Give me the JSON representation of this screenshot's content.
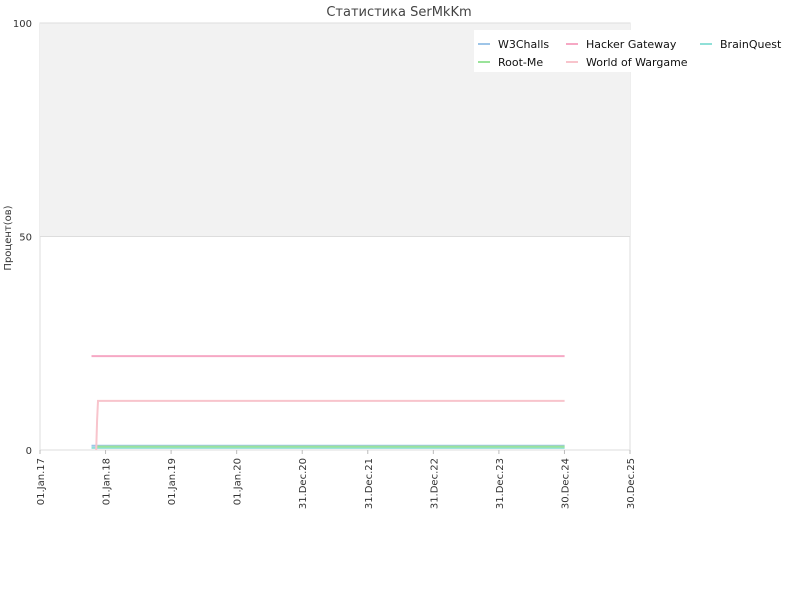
{
  "chart_data": {
    "type": "line",
    "title": "Статистика SerMkKm",
    "ylabel": "Процент(ов)",
    "xlabel": "",
    "ylim": [
      0,
      100
    ],
    "y_ticks": [
      "0",
      "50",
      "100"
    ],
    "x_ticks": [
      "01.Jan.17",
      "01.Jan.18",
      "01.Jan.19",
      "01.Jan.20",
      "31.Dec.20",
      "31.Dec.21",
      "31.Dec.22",
      "31.Dec.23",
      "30.Dec.24",
      "30.Dec.25"
    ],
    "band": {
      "from": 50,
      "to": 100,
      "color": "#f2f2f2"
    },
    "legend_position": "top-right",
    "series": [
      {
        "name": "W3Challs",
        "color": "#9ec5e8",
        "points": [
          [
            "2017-10-15",
            1
          ],
          [
            "2024-12-31",
            1
          ]
        ]
      },
      {
        "name": "Hacker Gateway",
        "color": "#f6a8c4",
        "points": [
          [
            "2017-10-15",
            22
          ],
          [
            "2024-12-31",
            22
          ]
        ]
      },
      {
        "name": "BrainQuest",
        "color": "#90e0d8",
        "points": [
          [
            "2017-10-15",
            0.5
          ],
          [
            "2024-12-31",
            0.5
          ]
        ]
      },
      {
        "name": "Root-Me",
        "color": "#9ae39a",
        "points": [
          [
            "2017-11-15",
            0.8
          ],
          [
            "2024-12-31",
            0.8
          ]
        ]
      },
      {
        "name": "World of Wargame",
        "color": "#f8c4cc",
        "points": [
          [
            "2017-11-10",
            0
          ],
          [
            "2017-11-15",
            7
          ],
          [
            "2017-11-20",
            11.5
          ],
          [
            "2024-12-31",
            11.5
          ]
        ]
      }
    ]
  }
}
